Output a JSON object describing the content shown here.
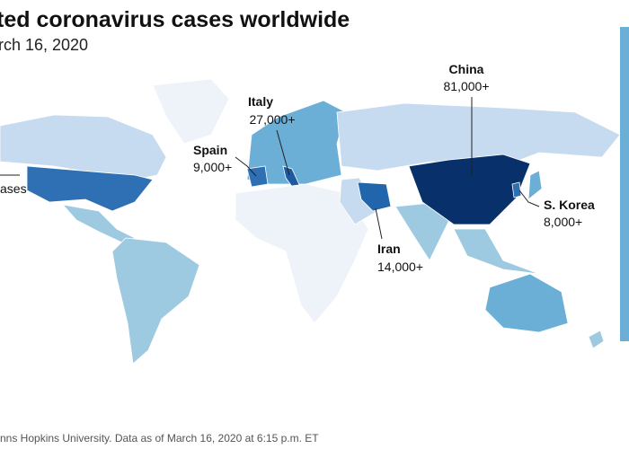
{
  "header": {
    "title": "ted coronavirus cases worldwide",
    "subtitle": "rch 16, 2020"
  },
  "left_label": "ases",
  "annotations": [
    {
      "country": "China",
      "count": "81,000+"
    },
    {
      "country": "Italy",
      "count": "27,000+"
    },
    {
      "country": "Spain",
      "count": "9,000+"
    },
    {
      "country": "Iran",
      "count": "14,000+"
    },
    {
      "country": "S. Korea",
      "count": "8,000+"
    }
  ],
  "source": "nns Hopkins University. Data as of March 16, 2020 at 6:15 p.m. ET"
}
